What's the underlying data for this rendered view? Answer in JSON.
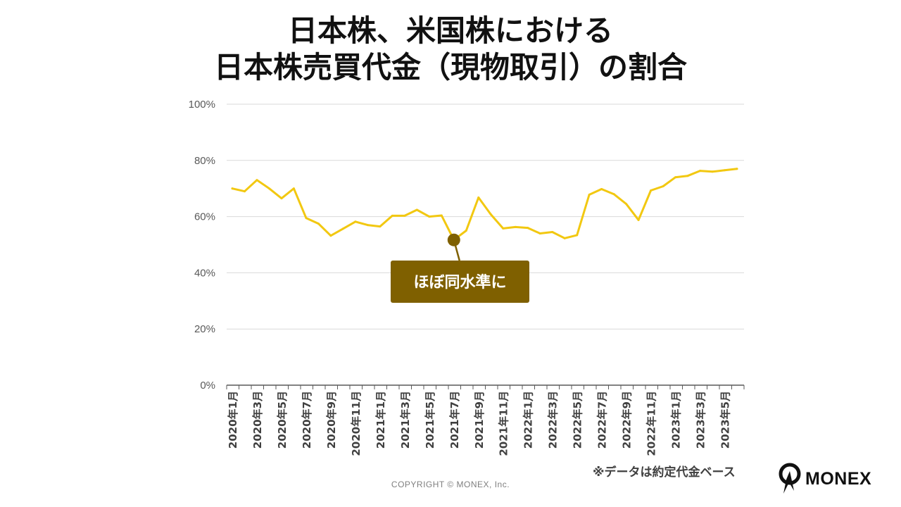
{
  "title_lines": [
    "日本株、米国株における",
    "日本株売買代金（現物取引）の割合"
  ],
  "note": "※データは約定代金ベース",
  "copyright": "COPYRIGHT © MONEX, Inc.",
  "logo_text": "MONEX",
  "chart_data": {
    "type": "line",
    "title": "日本株、米国株における 日本株売買代金（現物取引）の割合",
    "xlabel": "",
    "ylabel": "",
    "ylim": [
      0,
      100
    ],
    "yticks": [
      "0%",
      "20%",
      "40%",
      "60%",
      "80%",
      "100%"
    ],
    "grid": true,
    "categories": [
      "2020年1月",
      "2020年2月",
      "2020年3月",
      "2020年4月",
      "2020年5月",
      "2020年6月",
      "2020年7月",
      "2020年8月",
      "2020年9月",
      "2020年10月",
      "2020年11月",
      "2020年12月",
      "2021年1月",
      "2021年2月",
      "2021年3月",
      "2021年4月",
      "2021年5月",
      "2021年6月",
      "2021年7月",
      "2021年8月",
      "2021年9月",
      "2021年10月",
      "2021年11月",
      "2021年12月",
      "2022年1月",
      "2022年2月",
      "2022年3月",
      "2022年4月",
      "2022年5月",
      "2022年6月",
      "2022年7月",
      "2022年8月",
      "2022年9月",
      "2022年10月",
      "2022年11月",
      "2022年12月",
      "2023年1月",
      "2023年2月",
      "2023年3月",
      "2023年4月",
      "2023年5月",
      "2023年6月"
    ],
    "tick_labels": [
      "2020年1月",
      "2020年3月",
      "2020年5月",
      "2020年7月",
      "2020年9月",
      "2020年11月",
      "2021年1月",
      "2021年3月",
      "2021年5月",
      "2021年7月",
      "2021年9月",
      "2021年11月",
      "2022年1月",
      "2022年3月",
      "2022年5月",
      "2022年7月",
      "2022年9月",
      "2022年11月",
      "2023年1月",
      "2023年3月",
      "2023年5月"
    ],
    "series": [
      {
        "color": "#F2C811",
        "values": [
          70.0,
          69.0,
          73.0,
          70.0,
          66.5,
          70.0,
          59.5,
          57.5,
          53.2,
          55.7,
          58.2,
          57.0,
          56.5,
          60.3,
          60.3,
          62.4,
          60.0,
          60.4,
          51.7,
          55.0,
          66.8,
          60.8,
          55.8,
          56.3,
          56.0,
          54.0,
          54.5,
          52.3,
          53.4,
          67.8,
          69.8,
          68.0,
          64.5,
          58.8,
          69.3,
          70.8,
          74.0,
          74.5,
          76.3,
          76.0,
          76.5,
          77.0
        ]
      }
    ],
    "annotation": {
      "text": "ほぼ同水準に",
      "category": "2021年7月",
      "value": 51.7,
      "box_color": "#7F6000",
      "marker_color": "#7F6000"
    }
  }
}
